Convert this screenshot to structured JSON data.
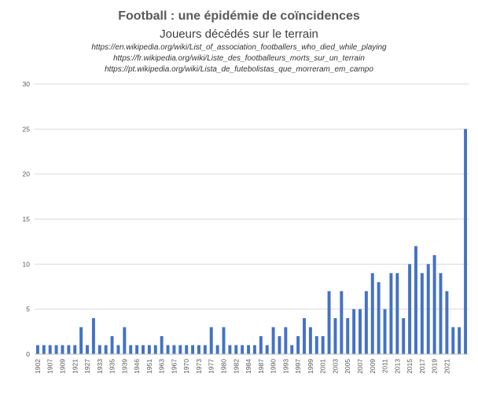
{
  "chart_data": {
    "type": "bar",
    "title": "Football : une épidémie de coïncidences",
    "subtitle": "Joueurs décédés sur le terrain",
    "sources": [
      "https://en.wikipedia.org/wiki/List_of_association_footballers_who_died_while_playing",
      "https://fr.wikipedia.org/wiki/Liste_des_footballeurs_morts_sur_un_terrain",
      "https://pt.wikipedia.org/wiki/Lista_de_futebolistas_que_morreram_em_campo"
    ],
    "ylim": [
      0,
      30
    ],
    "yticks": [
      0,
      5,
      10,
      15,
      20,
      25,
      30
    ],
    "grid": true,
    "legend": "none",
    "bar_color": "#4472C4",
    "tick_labels": [
      "1902",
      "1907",
      "1909",
      "1921",
      "1927",
      "1933",
      "1935",
      "1939",
      "1946",
      "1951",
      "1963",
      "1967",
      "1970",
      "1973",
      "1977",
      "1980",
      "1982",
      "1984",
      "1987",
      "1990",
      "1993",
      "1997",
      "1999",
      "2001",
      "2003",
      "2005",
      "2007",
      "2009",
      "2011",
      "2013",
      "2015",
      "2017",
      "2019",
      "2021"
    ],
    "values": [
      1,
      1,
      1,
      1,
      1,
      1,
      1,
      3,
      1,
      4,
      1,
      1,
      2,
      1,
      3,
      1,
      1,
      1,
      1,
      1,
      2,
      1,
      1,
      1,
      1,
      1,
      1,
      1,
      3,
      1,
      3,
      1,
      1,
      1,
      1,
      1,
      2,
      1,
      3,
      2,
      3,
      1,
      2,
      4,
      3,
      2,
      2,
      7,
      4,
      7,
      4,
      5,
      5,
      7,
      9,
      8,
      5,
      9,
      9,
      4,
      10,
      12,
      9,
      10,
      11,
      9,
      7,
      3,
      3,
      25
    ]
  }
}
